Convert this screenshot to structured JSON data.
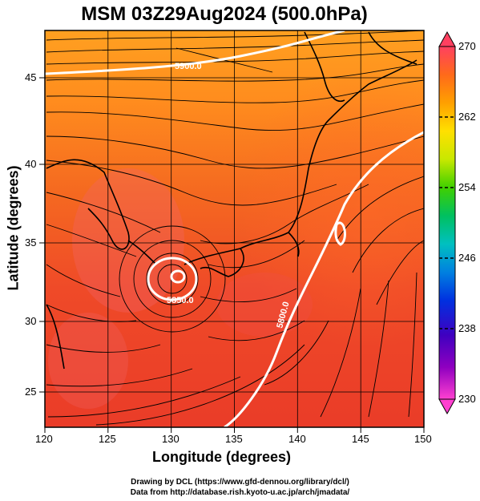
{
  "title": "MSM 03Z29Aug2024 (500.0hPa)",
  "x_axis": {
    "label": "Longitude (degrees)",
    "ticks": [
      "120",
      "125",
      "130",
      "135",
      "140",
      "145",
      "150"
    ]
  },
  "y_axis": {
    "label": "Latitude  (degrees)",
    "ticks": [
      "45",
      "40",
      "35",
      "30",
      "25"
    ]
  },
  "map_extent": {
    "lon": [
      120,
      150
    ],
    "lat": [
      22.4,
      47.6
    ]
  },
  "contours": [
    {
      "label": "5800.0",
      "color": "#ffffff"
    },
    {
      "label": "5850.0",
      "color": "#ffffff"
    },
    {
      "label": "5900.0",
      "color": "#ffffff"
    }
  ],
  "colorbar": {
    "ticks": [
      "270",
      "262",
      "254",
      "246",
      "238",
      "230"
    ],
    "range": [
      230,
      270
    ],
    "colors": [
      "#ff4060",
      "#ff6a1a",
      "#ffa000",
      "#ffe000",
      "#c8e800",
      "#40d000",
      "#00c060",
      "#00c0c0",
      "#0080e0",
      "#0030e0",
      "#4000c0",
      "#9000c0",
      "#ff40d0"
    ]
  },
  "credits": {
    "line1": "Drawing by DCL (https://www.gfd-dennou.org/library/dcl/)",
    "line2": "Data from http://database.rish.kyoto-u.ac.jp/arch/jmadata/"
  }
}
